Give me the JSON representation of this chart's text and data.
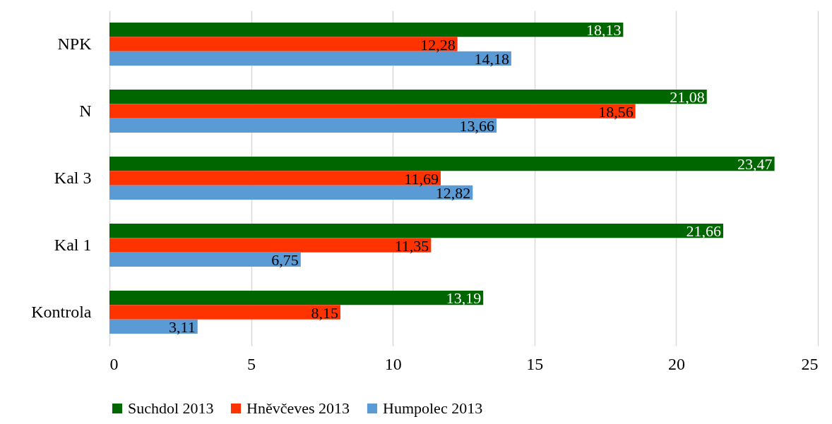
{
  "chart_data": {
    "type": "bar",
    "orientation": "horizontal",
    "categories": [
      "NPK",
      "N",
      "Kal 3",
      "Kal 1",
      "Kontrola"
    ],
    "series": [
      {
        "name": "Suchdol 2013",
        "color": "#006600",
        "values": [
          18.13,
          21.08,
          23.47,
          21.66,
          13.19
        ],
        "value_labels": [
          "18,13",
          "21,08",
          "23,47",
          "21,66",
          "13,19"
        ]
      },
      {
        "name": "Hněvčeves 2013",
        "color": "#ff3300",
        "values": [
          12.28,
          18.56,
          11.69,
          11.35,
          8.15
        ],
        "value_labels": [
          "12,28",
          "18,56",
          "11,69",
          "11,35",
          "8,15"
        ]
      },
      {
        "name": "Humpolec 2013",
        "color": "#5b9bd5",
        "values": [
          14.18,
          13.66,
          12.82,
          6.75,
          3.11
        ],
        "value_labels": [
          "14,18",
          "13,66",
          "12,82",
          "6,75",
          "3,11"
        ]
      }
    ],
    "xlim": [
      0,
      25
    ],
    "xticks": [
      0,
      5,
      10,
      15,
      20,
      25
    ],
    "grid": "x",
    "legend": "bottom"
  }
}
